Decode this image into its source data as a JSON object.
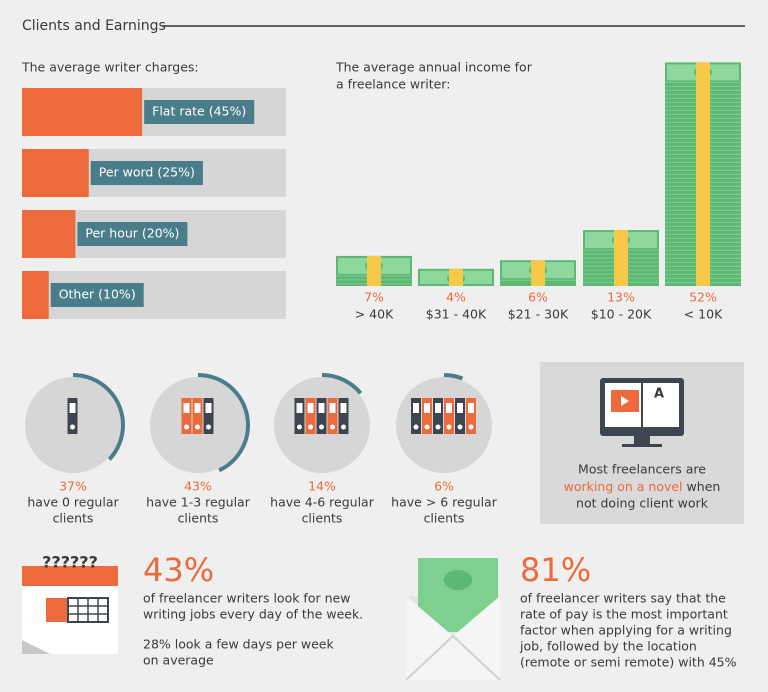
{
  "header": {
    "title": "Clients and Earnings"
  },
  "charges": {
    "title": "The average writer charges:",
    "items": [
      {
        "label": "Flat rate (45%)",
        "value": 45
      },
      {
        "label": "Per word (25%)",
        "value": 25
      },
      {
        "label": "Per hour (20%)",
        "value": 20
      },
      {
        "label": "Other (10%)",
        "value": 10
      }
    ]
  },
  "income": {
    "title_lines": [
      "The average annual income for",
      "a freelance writer:"
    ],
    "items": [
      {
        "value": 7,
        "label": "7%",
        "range": "> 40K"
      },
      {
        "value": 4,
        "label": "4%",
        "range": "$31 - 40K"
      },
      {
        "value": 6,
        "label": "6%",
        "range": "$21 - 30K"
      },
      {
        "value": 13,
        "label": "13%",
        "range": "$10 - 20K"
      },
      {
        "value": 52,
        "label": "52%",
        "range": "< 10K"
      }
    ]
  },
  "clients": [
    {
      "value": 37,
      "label": "37%",
      "text_lines": [
        "have 0 regular",
        "clients"
      ]
    },
    {
      "value": 43,
      "label": "43%",
      "text_lines": [
        "have 1-3 regular",
        "clients"
      ]
    },
    {
      "value": 14,
      "label": "14%",
      "text_lines": [
        "have 4-6 regular",
        "clients"
      ]
    },
    {
      "value": 6,
      "label": "6%",
      "text_lines": [
        "have > 6 regular",
        "clients"
      ]
    }
  ],
  "novel": {
    "line1": "Most freelancers are",
    "highlight": "working on a novel",
    "line2_rest": "when",
    "line3": "not doing client work"
  },
  "job_search": {
    "stat": "43%",
    "lines": [
      "of freelancer writers look for new",
      "writing jobs every day of the week."
    ],
    "note_lines": [
      "28% look a few days per week",
      "on average"
    ]
  },
  "pay": {
    "stat": "81%",
    "lines": [
      "of freelancer writers say that the",
      "rate of pay is the most important",
      "factor when applying for a writing",
      "job, followed by the location",
      "(remote or semi remote) with 45%"
    ]
  }
}
